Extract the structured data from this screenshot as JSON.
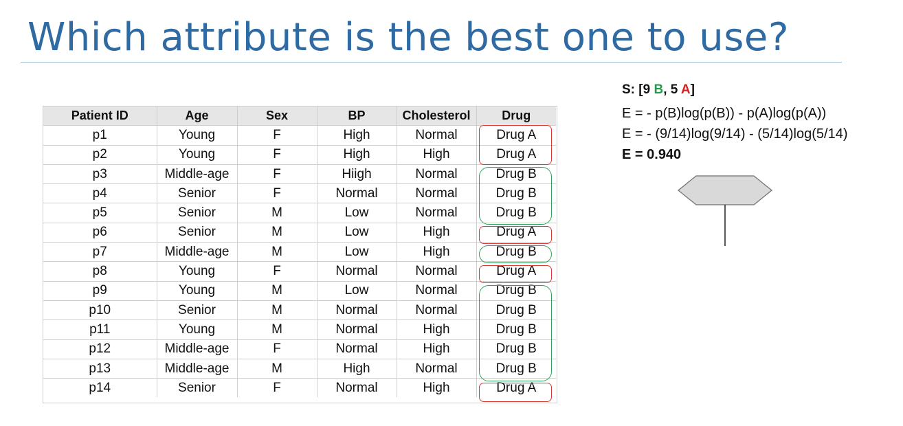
{
  "slide": {
    "title": "Which attribute is the best one to use?"
  },
  "table": {
    "headers": [
      "Patient ID",
      "Age",
      "Sex",
      "BP",
      "Cholesterol",
      "Drug"
    ],
    "rows": [
      [
        "p1",
        "Young",
        "F",
        "High",
        "Normal",
        "Drug A"
      ],
      [
        "p2",
        "Young",
        "F",
        "High",
        "High",
        "Drug A"
      ],
      [
        "p3",
        "Middle-age",
        "F",
        "Hiigh",
        "Normal",
        "Drug B"
      ],
      [
        "p4",
        "Senior",
        "F",
        "Normal",
        "Normal",
        "Drug B"
      ],
      [
        "p5",
        "Senior",
        "M",
        "Low",
        "Normal",
        "Drug B"
      ],
      [
        "p6",
        "Senior",
        "M",
        "Low",
        "High",
        "Drug A"
      ],
      [
        "p7",
        "Middle-age",
        "M",
        "Low",
        "High",
        "Drug B"
      ],
      [
        "p8",
        "Young",
        "F",
        "Normal",
        "Normal",
        "Drug A"
      ],
      [
        "p9",
        "Young",
        "M",
        "Low",
        "Normal",
        "Drug B"
      ],
      [
        "p10",
        "Senior",
        "M",
        "Normal",
        "Normal",
        "Drug B"
      ],
      [
        "p11",
        "Young",
        "M",
        "Normal",
        "High",
        "Drug B"
      ],
      [
        "p12",
        "Middle-age",
        "F",
        "Normal",
        "High",
        "Drug B"
      ],
      [
        "p13",
        "Middle-age",
        "M",
        "High",
        "Normal",
        "Drug B"
      ],
      [
        "p14",
        "Senior",
        "F",
        "Normal",
        "High",
        "Drug A"
      ]
    ]
  },
  "formula": {
    "set_prefix": "S: [9 ",
    "set_b": "B",
    "set_mid": ", 5 ",
    "set_a": "A",
    "set_suffix": "]",
    "entropy_def": "E = - p(B)log(p(B)) - p(A)log(p(A))",
    "entropy_calc": "E = - (9/14)log(9/14) - (5/14)log(5/14)",
    "entropy_result": "E = 0.940"
  },
  "colors": {
    "title": "#2F6AA3",
    "drug_a_box": "#d83a3a",
    "drug_b_box": "#2fa35a",
    "header_bg": "#e6e6e6",
    "node_fill": "#d9d9d9"
  }
}
